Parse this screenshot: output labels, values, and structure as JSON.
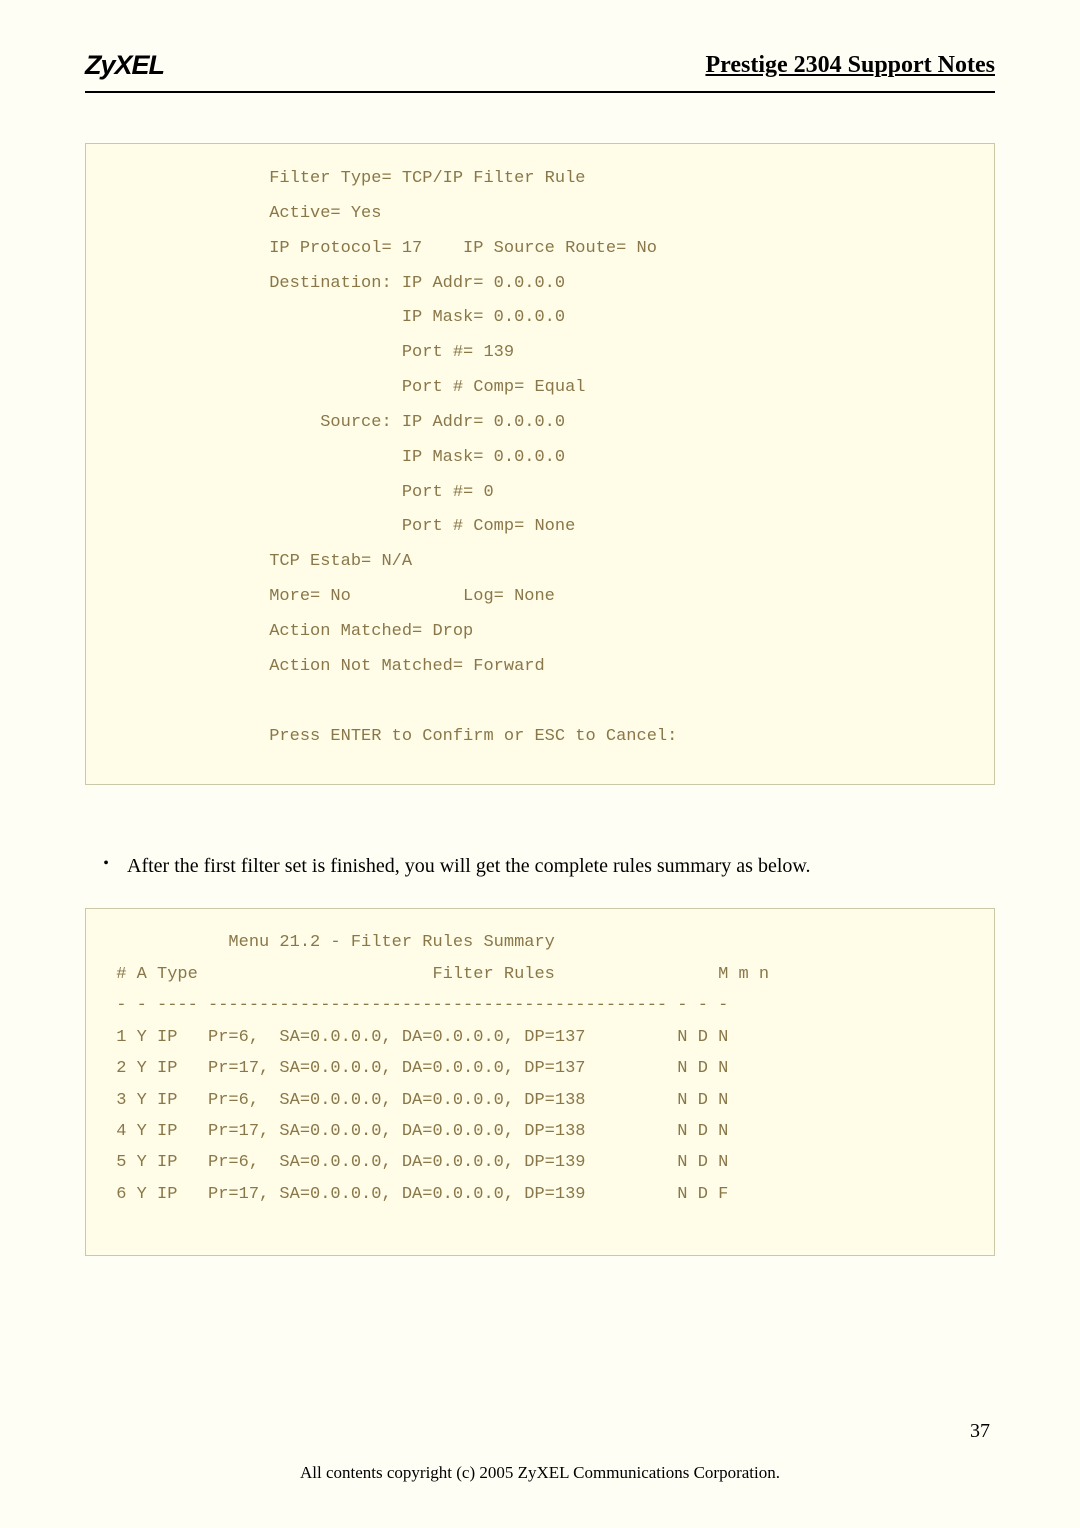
{
  "header": {
    "logo": "ZyXEL",
    "title": "Prestige 2304 Support Notes"
  },
  "codebox1": {
    "lines": [
      "                Filter Type= TCP/IP Filter Rule",
      "                Active= Yes",
      "                IP Protocol= 17    IP Source Route= No",
      "                Destination: IP Addr= 0.0.0.0",
      "                             IP Mask= 0.0.0.0",
      "                             Port #= 139",
      "                             Port # Comp= Equal",
      "                     Source: IP Addr= 0.0.0.0",
      "                             IP Mask= 0.0.0.0",
      "                             Port #= 0",
      "                             Port # Comp= None",
      "                TCP Estab= N/A",
      "                More= No           Log= None",
      "                Action Matched= Drop",
      "                Action Not Matched= Forward",
      "",
      "                Press ENTER to Confirm or ESC to Cancel:"
    ]
  },
  "bullet": {
    "text": "After the first filter set is finished, you will get the complete rules summary as below."
  },
  "codebox2": {
    "lines": [
      "            Menu 21.2 - Filter Rules Summary",
      " # A Type                       Filter Rules                M m n",
      " - - ---- --------------------------------------------- - - -",
      " 1 Y IP   Pr=6,  SA=0.0.0.0, DA=0.0.0.0, DP=137         N D N",
      " 2 Y IP   Pr=17, SA=0.0.0.0, DA=0.0.0.0, DP=137         N D N",
      " 3 Y IP   Pr=6,  SA=0.0.0.0, DA=0.0.0.0, DP=138         N D N",
      " 4 Y IP   Pr=17, SA=0.0.0.0, DA=0.0.0.0, DP=138         N D N",
      " 5 Y IP   Pr=6,  SA=0.0.0.0, DA=0.0.0.0, DP=139         N D N",
      " 6 Y IP   Pr=17, SA=0.0.0.0, DA=0.0.0.0, DP=139         N D F"
    ]
  },
  "footer": {
    "copyright": "All contents copyright (c) 2005 ZyXEL Communications Corporation.",
    "pagenum": "37"
  },
  "colors": {
    "page_bg": "#fffef5",
    "box_bg": "#fffde8",
    "box_border": "#c9c9a8",
    "mono_text": "#8a7749"
  }
}
